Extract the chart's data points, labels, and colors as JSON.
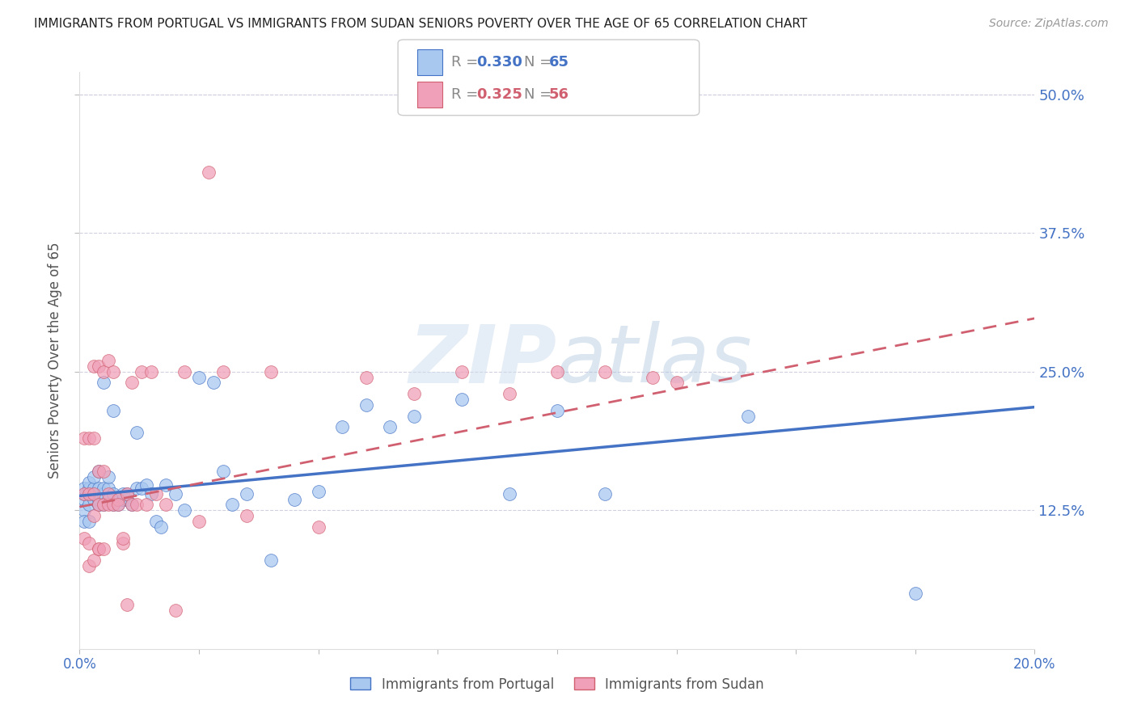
{
  "title": "IMMIGRANTS FROM PORTUGAL VS IMMIGRANTS FROM SUDAN SENIORS POVERTY OVER THE AGE OF 65 CORRELATION CHART",
  "source": "Source: ZipAtlas.com",
  "ylabel": "Seniors Poverty Over the Age of 65",
  "label1": "Immigrants from Portugal",
  "label2": "Immigrants from Sudan",
  "color1": "#a8c8f0",
  "color2": "#f0a0b8",
  "line_color1": "#4472c4",
  "line_color2": "#d06070",
  "ytick_labels": [
    "12.5%",
    "25.0%",
    "37.5%",
    "50.0%"
  ],
  "ytick_values": [
    0.125,
    0.25,
    0.375,
    0.5
  ],
  "xlim": [
    0.0,
    0.2
  ],
  "ylim": [
    0.0,
    0.52
  ],
  "watermark": "ZIPAtlas",
  "portugal_x": [
    0.001,
    0.001,
    0.001,
    0.001,
    0.001,
    0.002,
    0.002,
    0.002,
    0.002,
    0.002,
    0.003,
    0.003,
    0.003,
    0.003,
    0.003,
    0.004,
    0.004,
    0.004,
    0.004,
    0.004,
    0.005,
    0.005,
    0.005,
    0.005,
    0.006,
    0.006,
    0.006,
    0.007,
    0.007,
    0.007,
    0.008,
    0.008,
    0.009,
    0.009,
    0.01,
    0.01,
    0.011,
    0.012,
    0.012,
    0.013,
    0.014,
    0.015,
    0.016,
    0.017,
    0.018,
    0.02,
    0.022,
    0.025,
    0.028,
    0.03,
    0.032,
    0.035,
    0.04,
    0.045,
    0.05,
    0.055,
    0.06,
    0.065,
    0.07,
    0.08,
    0.09,
    0.1,
    0.11,
    0.14,
    0.175
  ],
  "portugal_y": [
    0.135,
    0.14,
    0.145,
    0.125,
    0.115,
    0.13,
    0.14,
    0.145,
    0.15,
    0.115,
    0.135,
    0.14,
    0.14,
    0.145,
    0.155,
    0.13,
    0.135,
    0.145,
    0.16,
    0.13,
    0.13,
    0.14,
    0.145,
    0.24,
    0.135,
    0.145,
    0.155,
    0.13,
    0.14,
    0.215,
    0.13,
    0.135,
    0.135,
    0.14,
    0.135,
    0.14,
    0.13,
    0.145,
    0.195,
    0.145,
    0.148,
    0.14,
    0.115,
    0.11,
    0.148,
    0.14,
    0.125,
    0.245,
    0.24,
    0.16,
    0.13,
    0.14,
    0.08,
    0.135,
    0.142,
    0.2,
    0.22,
    0.2,
    0.21,
    0.225,
    0.14,
    0.215,
    0.14,
    0.21,
    0.05
  ],
  "sudan_x": [
    0.001,
    0.001,
    0.001,
    0.002,
    0.002,
    0.002,
    0.002,
    0.003,
    0.003,
    0.003,
    0.003,
    0.003,
    0.004,
    0.004,
    0.004,
    0.004,
    0.004,
    0.005,
    0.005,
    0.005,
    0.005,
    0.006,
    0.006,
    0.006,
    0.007,
    0.007,
    0.008,
    0.008,
    0.009,
    0.009,
    0.01,
    0.01,
    0.011,
    0.011,
    0.012,
    0.013,
    0.014,
    0.015,
    0.016,
    0.018,
    0.02,
    0.022,
    0.025,
    0.027,
    0.03,
    0.035,
    0.04,
    0.05,
    0.06,
    0.07,
    0.08,
    0.09,
    0.1,
    0.11,
    0.12,
    0.125
  ],
  "sudan_y": [
    0.19,
    0.14,
    0.1,
    0.19,
    0.14,
    0.095,
    0.075,
    0.08,
    0.12,
    0.14,
    0.19,
    0.255,
    0.09,
    0.09,
    0.13,
    0.255,
    0.16,
    0.09,
    0.13,
    0.16,
    0.25,
    0.13,
    0.26,
    0.14,
    0.13,
    0.25,
    0.135,
    0.13,
    0.095,
    0.1,
    0.04,
    0.14,
    0.13,
    0.24,
    0.13,
    0.25,
    0.13,
    0.25,
    0.14,
    0.13,
    0.035,
    0.25,
    0.115,
    0.43,
    0.25,
    0.12,
    0.25,
    0.11,
    0.245,
    0.23,
    0.25,
    0.23,
    0.25,
    0.25,
    0.245,
    0.24
  ],
  "portugal_trend": [
    0.138,
    0.218
  ],
  "sudan_trend": [
    0.128,
    0.298
  ]
}
